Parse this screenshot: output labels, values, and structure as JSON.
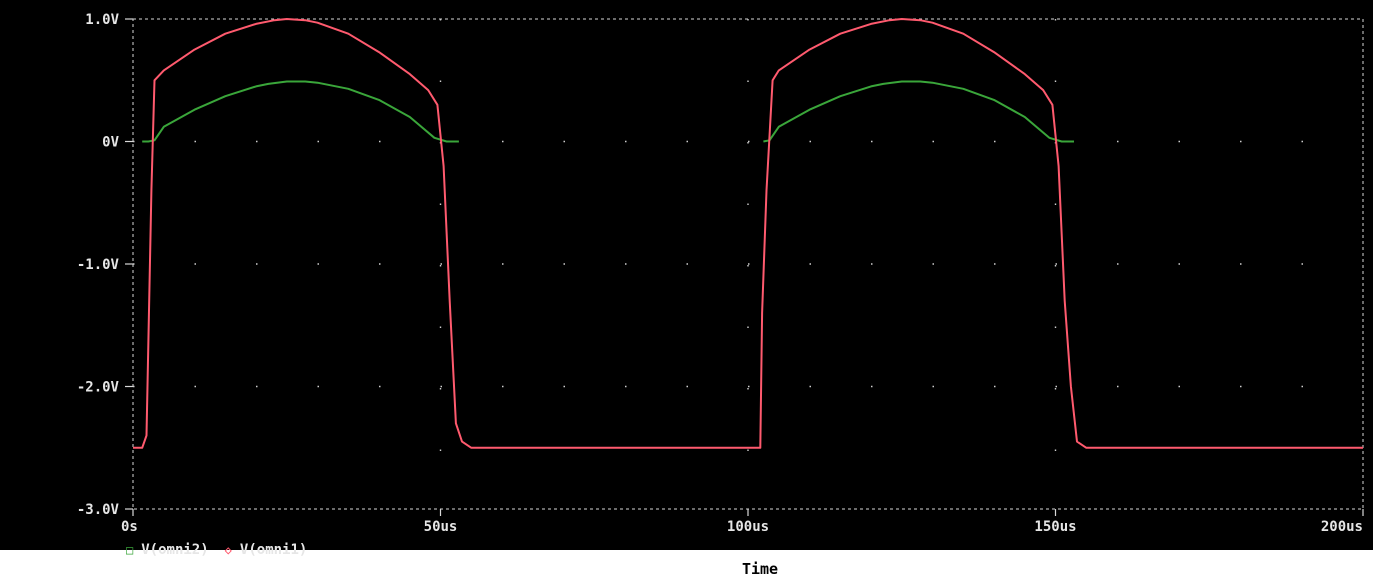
{
  "chart_data": {
    "type": "line",
    "title": "",
    "xlabel": "Time",
    "ylabel": "",
    "xlim": [
      0,
      200
    ],
    "ylim": [
      -3.0,
      1.0
    ],
    "x_unit": "us",
    "x_ticks": [
      0,
      50,
      100,
      150,
      200
    ],
    "x_tick_labels": [
      "0s",
      "50us",
      "100us",
      "150us",
      "200us"
    ],
    "y_ticks": [
      1.0,
      0,
      -1.0,
      -2.0,
      -3.0
    ],
    "y_tick_labels": [
      "1.0V",
      "0V",
      "-1.0V",
      "-2.0V",
      "-3.0V"
    ],
    "grid": true,
    "legend_placement": "bottom-left",
    "series": [
      {
        "name": "V(omni2)",
        "color": "#3aa63a",
        "marker": "square",
        "x": [
          1.5,
          2.5,
          3.5,
          5,
          10,
          15,
          20,
          22,
          25,
          28,
          30,
          35,
          40,
          45,
          49,
          51,
          53,
          102.5,
          103.5,
          105,
          110,
          115,
          120,
          122,
          125,
          128,
          130,
          135,
          140,
          145,
          149,
          151,
          153
        ],
        "y": [
          0,
          0,
          0.01,
          0.12,
          0.26,
          0.37,
          0.45,
          0.47,
          0.49,
          0.49,
          0.48,
          0.43,
          0.34,
          0.2,
          0.03,
          0,
          0,
          0,
          0.01,
          0.12,
          0.26,
          0.37,
          0.45,
          0.47,
          0.49,
          0.49,
          0.48,
          0.43,
          0.34,
          0.2,
          0.03,
          0,
          0
        ]
      },
      {
        "name": "V(omni1)",
        "color": "#ff5a6e",
        "marker": "diamond",
        "x": [
          0,
          1.5,
          2.2,
          3,
          3.5,
          5,
          10,
          15,
          20,
          23,
          25,
          28,
          30,
          35,
          40,
          45,
          48,
          49.5,
          50.5,
          51.5,
          52.5,
          53.5,
          55,
          60,
          70,
          80,
          90,
          100,
          102,
          102.3,
          103,
          104,
          105,
          110,
          115,
          120,
          123,
          125,
          128,
          130,
          135,
          140,
          145,
          148,
          149.5,
          150.5,
          151.5,
          152.5,
          153.5,
          155,
          160,
          170,
          180,
          190,
          200
        ],
        "y": [
          -2.5,
          -2.5,
          -2.4,
          -0.4,
          0.5,
          0.58,
          0.75,
          0.88,
          0.96,
          0.99,
          1.0,
          0.99,
          0.97,
          0.88,
          0.73,
          0.55,
          0.42,
          0.3,
          -0.2,
          -1.3,
          -2.3,
          -2.45,
          -2.5,
          -2.5,
          -2.5,
          -2.5,
          -2.5,
          -2.5,
          -2.5,
          -1.4,
          -0.4,
          0.5,
          0.58,
          0.75,
          0.88,
          0.96,
          0.99,
          1.0,
          0.99,
          0.97,
          0.88,
          0.73,
          0.55,
          0.42,
          0.3,
          -0.2,
          -1.3,
          -2.0,
          -2.45,
          -2.5,
          -2.5,
          -2.5,
          -2.5,
          -2.5,
          -2.5
        ]
      }
    ]
  }
}
